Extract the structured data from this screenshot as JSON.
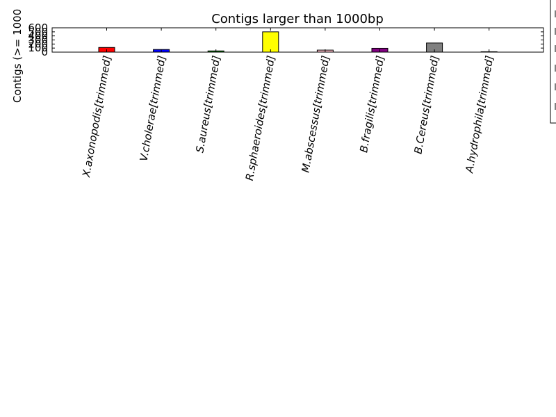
{
  "chart_data": {
    "type": "bar",
    "title": "Contigs larger than 1000bp",
    "ylabel": "Contigs (>= 1000",
    "xlabel": "",
    "ylim": [
      0,
      600
    ],
    "yticks": [
      0,
      100,
      200,
      300,
      400,
      500,
      600
    ],
    "ytick_labels": [
      "0",
      "100",
      "200",
      "300",
      "400",
      "500",
      "600"
    ],
    "categories": [
      "X.axonopodis[trimmed]",
      "V.cholerae[trimmed]",
      "S.aureus[trimmed]",
      "R.sphaeroides[trimmed]",
      "M.abscessus[trimmed]",
      "B.fragilis[trimmed]",
      "B.Cereus[trimmed]",
      "A.hydrophila[trimmed]"
    ],
    "values": [
      115,
      65,
      30,
      500,
      50,
      95,
      225,
      10
    ],
    "colors": [
      "#ff0000",
      "#0000ff",
      "#008000",
      "#ffff00",
      "#ffc0cb",
      "#800080",
      "#808080",
      "#ffffff"
    ],
    "grid": false,
    "legend": "right"
  }
}
